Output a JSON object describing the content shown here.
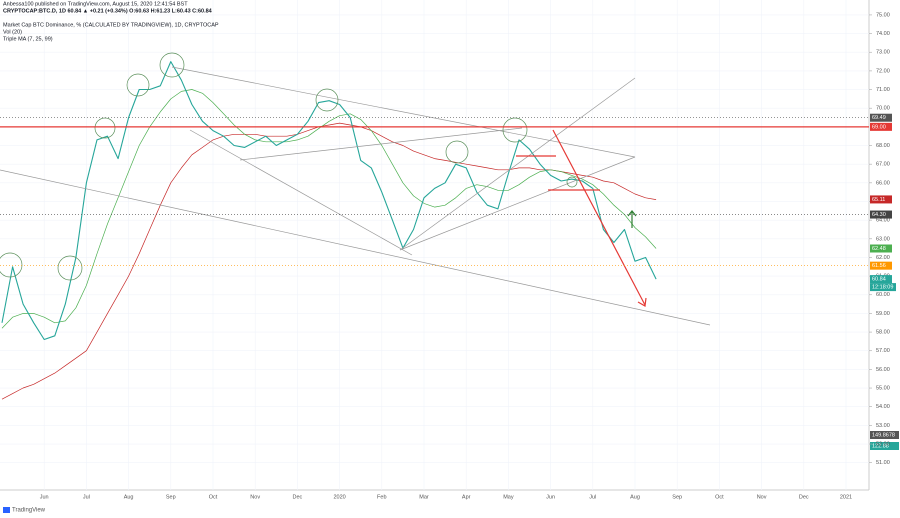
{
  "header": {
    "publisher": "Anbessa100 published on TradingView.com, August 15, 2020 12:41:54 BST",
    "symbol": "CRYPTOCAP:BTC.D, 1D 60.84 ▲ +0.21 (+0.34%) O:60.63 H:61.23 L:60.43 C:60.84"
  },
  "chart_data": {
    "type": "line",
    "title": "Market Cap BTC Dominance, % (CALCULATED BY TRADINGVIEW), 1D, CRYPTOCAP",
    "indicators": [
      "Vol (20)",
      "Triple MA (7, 25, 99)"
    ],
    "categories": [
      null,
      null,
      null,
      null,
      "Jun",
      null,
      null,
      null,
      "Jul",
      null,
      null,
      null,
      "Aug",
      null,
      null,
      null,
      "Sep",
      null,
      null,
      null,
      "Oct",
      null,
      null,
      null,
      "Nov",
      null,
      null,
      null,
      "Dec",
      null,
      null,
      null,
      "2020",
      null,
      null,
      null,
      "Feb",
      null,
      null,
      null,
      "Mar",
      null,
      null,
      null,
      "Apr",
      null,
      null,
      null,
      "May",
      null,
      null,
      null,
      "Jun",
      null,
      null,
      null,
      "Jul",
      null,
      null,
      null,
      "Aug",
      null,
      null,
      null,
      "Sep",
      null,
      null,
      null,
      "Oct",
      null,
      null,
      null,
      "Nov",
      null,
      null,
      null,
      "Dec",
      null,
      null,
      null,
      "2021"
    ],
    "series": [
      {
        "name": "BTC.D",
        "color": "#26a69a",
        "width": 1.1,
        "values": [
          58.5,
          61.5,
          59.5,
          58.5,
          57.6,
          57.8,
          59.5,
          62,
          66,
          68.3,
          68.5,
          67.3,
          69.5,
          71,
          71,
          71.2,
          72.5,
          71.5,
          70.2,
          69.3,
          68.8,
          68.5,
          68,
          67.9,
          68.2,
          68.5,
          68,
          68.3,
          68.6,
          69.3,
          70.3,
          70.4,
          70.2,
          69.5,
          67.2,
          66.8,
          65.5,
          64,
          62.5,
          63.5,
          65.2,
          65.7,
          66,
          67,
          66.8,
          65.5,
          64.8,
          64.6,
          66.5,
          68.3,
          67.8,
          67,
          66.4,
          66.1,
          66.2,
          66.1,
          65.7,
          63.5,
          62.8,
          63.5,
          61.8,
          62,
          60.84,
          null,
          null,
          null,
          null,
          null,
          null,
          null,
          null,
          null,
          null,
          null,
          null,
          null,
          null,
          null,
          null,
          null,
          null
        ]
      },
      {
        "name": "MA 25",
        "color": "#4caf50",
        "width": 0.7,
        "values": [
          58.2,
          58.8,
          59,
          59,
          58.8,
          58.5,
          58.6,
          59.3,
          60.5,
          62.2,
          63.8,
          65.2,
          66.6,
          68,
          69,
          69.8,
          70.5,
          70.9,
          71,
          70.8,
          70.3,
          69.7,
          69.1,
          68.6,
          68.3,
          68.2,
          68.2,
          68.2,
          68.3,
          68.5,
          68.9,
          69.3,
          69.6,
          69.7,
          69.4,
          68.8,
          68,
          67,
          66,
          65.3,
          64.9,
          64.7,
          64.8,
          65.2,
          65.7,
          65.9,
          65.8,
          65.6,
          65.6,
          65.9,
          66.3,
          66.6,
          66.7,
          66.6,
          66.4,
          66.2,
          65.9,
          65.4,
          64.8,
          64.3,
          63.6,
          63.1,
          62.48,
          null,
          null,
          null,
          null,
          null,
          null,
          null,
          null,
          null,
          null,
          null,
          null,
          null,
          null,
          null,
          null,
          null,
          null
        ]
      },
      {
        "name": "MA 99",
        "color": "#c62828",
        "width": 0.7,
        "values": [
          54.4,
          54.7,
          55,
          55.2,
          55.5,
          55.8,
          56.2,
          56.6,
          57,
          58,
          59,
          60,
          61,
          62.2,
          63.5,
          64.8,
          66,
          66.8,
          67.5,
          67.9,
          68.3,
          68.5,
          68.6,
          68.6,
          68.6,
          68.5,
          68.5,
          68.5,
          68.6,
          68.8,
          69,
          69.1,
          69.2,
          69.1,
          69,
          68.8,
          68.5,
          68.2,
          68,
          67.7,
          67.5,
          67.3,
          67.2,
          67.1,
          67,
          66.9,
          66.8,
          66.7,
          66.7,
          66.8,
          66.8,
          66.7,
          66.7,
          66.6,
          66.5,
          66.4,
          66.3,
          66.1,
          66,
          65.7,
          65.4,
          65.2,
          65.1,
          null,
          null,
          null,
          null,
          null,
          null,
          null,
          null,
          null,
          null,
          null,
          null,
          null,
          null,
          null,
          null,
          null,
          null
        ]
      }
    ],
    "ylim": [
      50.5,
      75.8
    ],
    "yticks": [
      {
        "value": 51,
        "label": "51.00"
      },
      {
        "value": 52,
        "label": "52.00"
      },
      {
        "value": 53,
        "label": "53.00"
      },
      {
        "value": 54,
        "label": "54.00"
      },
      {
        "value": 55,
        "label": "55.00"
      },
      {
        "value": 56,
        "label": "56.00"
      },
      {
        "value": 57,
        "label": "57.00"
      },
      {
        "value": 58,
        "label": "58.00"
      },
      {
        "value": 59,
        "label": "59.00"
      },
      {
        "value": 60,
        "label": "60.00"
      },
      {
        "value": 61,
        "label": "61.00"
      },
      {
        "value": 62,
        "label": "62.00"
      },
      {
        "value": 63,
        "label": "63.00"
      },
      {
        "value": 64,
        "label": "64.00"
      },
      {
        "value": 65,
        "label": "65.00"
      },
      {
        "value": 66,
        "label": "66.00"
      },
      {
        "value": 67,
        "label": "67.00"
      },
      {
        "value": 68,
        "label": "68.00"
      },
      {
        "value": 70,
        "label": "70.00"
      },
      {
        "value": 71,
        "label": "71.00"
      },
      {
        "value": 72,
        "label": "72.00"
      },
      {
        "value": 73,
        "label": "73.00"
      },
      {
        "value": 74,
        "label": "74.00"
      },
      {
        "value": 75,
        "label": "75.00"
      }
    ],
    "price_labels": [
      {
        "value": 69.49,
        "label": "69.49",
        "color": "#555555",
        "line": "dotted"
      },
      {
        "value": 69,
        "label": "69.00",
        "color": "#e53935",
        "line": "solid"
      },
      {
        "value": 65.11,
        "label": "65.11",
        "color": "#c62828"
      },
      {
        "value": 64.3,
        "label": "64.30",
        "color": "#444444",
        "line": "dotted"
      },
      {
        "value": 62.48,
        "label": "62.48",
        "color": "#4caf50"
      },
      {
        "value": 61.56,
        "label": "61.56",
        "color": "#ff9800",
        "line": "dotted"
      },
      {
        "value": 60.84,
        "label": "60.84",
        "color": "#26a69a"
      }
    ],
    "countdown": "12:18:09",
    "volume_labels": [
      "149.8678",
      "122.88"
    ]
  },
  "footer": "TradingView"
}
